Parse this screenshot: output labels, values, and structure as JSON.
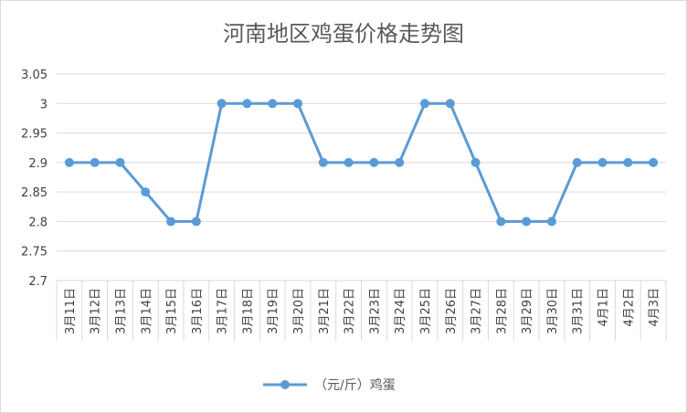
{
  "chart_data": {
    "type": "line",
    "title": "河南地区鸡蛋价格走势图",
    "xlabel": "",
    "ylabel": "",
    "ylim": [
      2.7,
      3.05
    ],
    "yticks": [
      "2.7",
      "2.75",
      "2.8",
      "2.85",
      "2.9",
      "2.95",
      "3",
      "3.05"
    ],
    "grid": true,
    "legend_position": "bottom",
    "categories": [
      "3月11日",
      "3月12日",
      "3月13日",
      "3月14日",
      "3月15日",
      "3月16日",
      "3月17日",
      "3月18日",
      "3月19日",
      "3月20日",
      "3月21日",
      "3月22日",
      "3月23日",
      "3月24日",
      "3月25日",
      "3月26日",
      "3月27日",
      "3月28日",
      "3月29日",
      "3月30日",
      "3月31日",
      "4月1日",
      "4月2日",
      "4月3日"
    ],
    "series": [
      {
        "name": "（元/斤）鸡蛋",
        "color": "#5b9bd5",
        "values": [
          2.9,
          2.9,
          2.9,
          2.85,
          2.8,
          2.8,
          3.0,
          3.0,
          3.0,
          3.0,
          2.9,
          2.9,
          2.9,
          2.9,
          3.0,
          3.0,
          2.9,
          2.8,
          2.8,
          2.8,
          2.9,
          2.9,
          2.9,
          2.9
        ]
      }
    ]
  }
}
